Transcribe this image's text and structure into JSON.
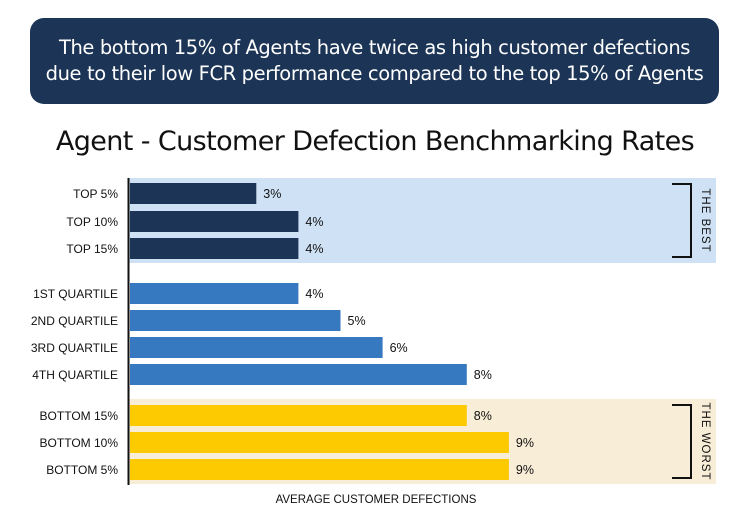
{
  "banner": {
    "text": "The bottom 15% of Agents have twice as high customer defections due to their low FCR performance compared to the top 15% of Agents"
  },
  "chart_data": {
    "type": "bar",
    "orientation": "horizontal",
    "title": "Agent - Customer Defection Benchmarking Rates",
    "xlabel": "AVERAGE CUSTOMER DEFECTIONS",
    "ylabel": "",
    "xlim": [
      0,
      10
    ],
    "grid": false,
    "categories": [
      "TOP 5%",
      "TOP 10%",
      "TOP 15%",
      "1ST QUARTILE",
      "2ND QUARTILE",
      "3RD QUARTILE",
      "4TH QUARTILE",
      "BOTTOM 15%",
      "BOTTOM 10%",
      "BOTTOM 5%"
    ],
    "values": [
      3,
      4,
      4,
      4,
      5,
      6,
      8,
      8,
      9,
      9
    ],
    "value_labels": [
      "3%",
      "4%",
      "4%",
      "4%",
      "5%",
      "6%",
      "8%",
      "8%",
      "9%",
      "9%"
    ],
    "groups": [
      {
        "name": "best",
        "label": "THE BEST",
        "indices": [
          0,
          1,
          2
        ],
        "bar_color": "#1c3455",
        "band_color": "#cfe2f5"
      },
      {
        "name": "quartiles",
        "label": "",
        "indices": [
          3,
          4,
          5,
          6
        ],
        "bar_color": "#3779c0",
        "band_color": ""
      },
      {
        "name": "worst",
        "label": "THE WORST",
        "indices": [
          7,
          8,
          9
        ],
        "bar_color": "#fdc900",
        "band_color": "#f8edd6"
      }
    ]
  }
}
